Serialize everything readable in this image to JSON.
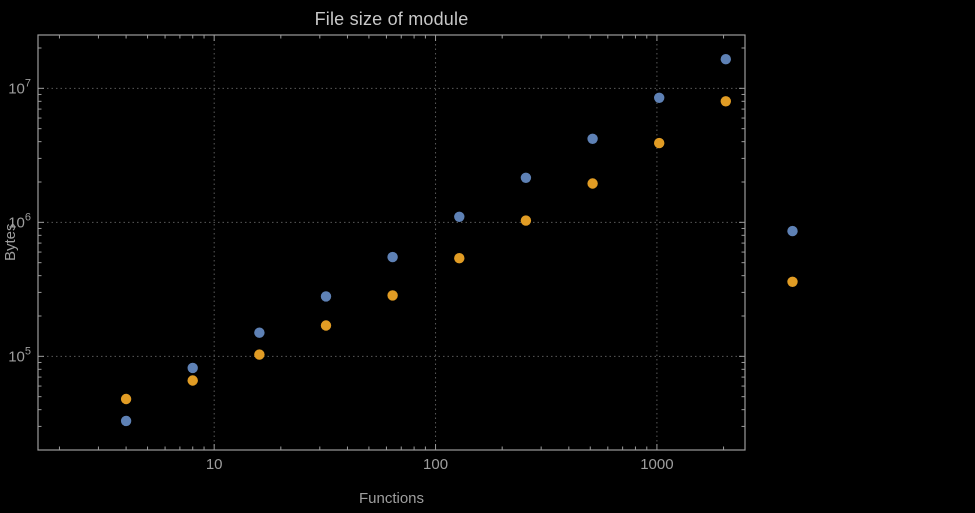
{
  "chart_data": {
    "type": "scatter",
    "title": "File size of module",
    "xlabel": "Functions",
    "ylabel": "Bytes",
    "xscale": "log",
    "yscale": "log",
    "xlim": [
      1.6,
      2500
    ],
    "ylim": [
      20000,
      25000000
    ],
    "grid": true,
    "grid_style": "dotted",
    "legend": "none",
    "x_ticks": [
      {
        "value": 10,
        "label": "10"
      },
      {
        "value": 100,
        "label": "100"
      },
      {
        "value": 1000,
        "label": "1000"
      }
    ],
    "y_ticks": [
      {
        "value": 100000,
        "mantissa": "10",
        "exponent": "5"
      },
      {
        "value": 1000000,
        "mantissa": "10",
        "exponent": "6"
      },
      {
        "value": 10000000,
        "mantissa": "10",
        "exponent": "7"
      }
    ],
    "series": [
      {
        "name": "blue",
        "color": "#5e81b5",
        "points": [
          [
            4,
            33000
          ],
          [
            8,
            82000
          ],
          [
            16,
            150000
          ],
          [
            32,
            280000
          ],
          [
            64,
            550000
          ],
          [
            128,
            1100000
          ],
          [
            256,
            2150000
          ],
          [
            512,
            4200000
          ],
          [
            1024,
            8500000
          ],
          [
            2048,
            16500000
          ],
          [
            4096,
            860000
          ]
        ]
      },
      {
        "name": "orange",
        "color": "#e19c24",
        "points": [
          [
            4,
            48000
          ],
          [
            8,
            66000
          ],
          [
            16,
            103000
          ],
          [
            32,
            170000
          ],
          [
            64,
            285000
          ],
          [
            128,
            540000
          ],
          [
            256,
            1030000
          ],
          [
            512,
            1950000
          ],
          [
            1024,
            3900000
          ],
          [
            2048,
            8000000
          ],
          [
            4096,
            360000
          ]
        ]
      }
    ],
    "style": {
      "background": "#000000",
      "frame": "#9b9b9b",
      "grid": "#5a5a5a",
      "label": "#9e9e9e",
      "title": "#c8c8c8"
    }
  }
}
